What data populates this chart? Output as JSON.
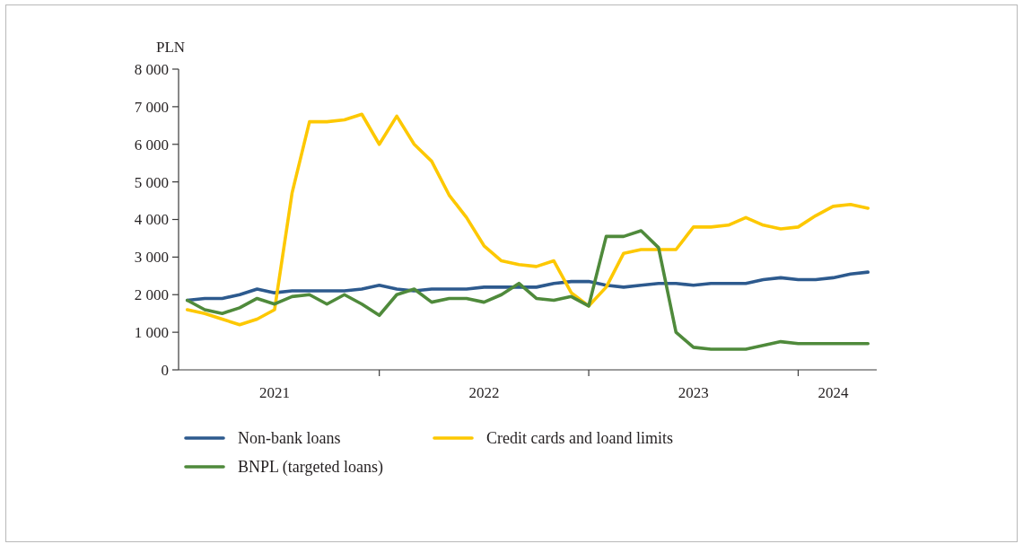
{
  "chart_data": {
    "type": "line",
    "ylabel": "PLN",
    "categories": [
      null,
      null,
      null,
      null,
      null,
      "2021",
      null,
      null,
      null,
      null,
      null,
      null,
      null,
      null,
      null,
      null,
      null,
      "2022",
      null,
      null,
      null,
      null,
      null,
      null,
      null,
      null,
      null,
      null,
      null,
      "2023",
      null,
      null,
      null,
      null,
      null,
      null,
      null,
      "2024",
      null,
      null
    ],
    "ylim": [
      0,
      8000
    ],
    "yticks": [
      0,
      {
        "value": 1000,
        "label": "1 000"
      },
      {
        "value": 2000,
        "label": "2 000"
      },
      {
        "value": 3000,
        "label": "3 000"
      },
      {
        "value": 4000,
        "label": "4 000"
      },
      {
        "value": 5000,
        "label": "5 000"
      },
      {
        "value": 6000,
        "label": "6 000"
      },
      {
        "value": 7000,
        "label": "7 000"
      },
      {
        "value": 8000,
        "label": "8 000"
      }
    ],
    "series": [
      {
        "name": "Non-bank loans",
        "color": "#2d5a8e",
        "values": [
          1850,
          1900,
          1900,
          2000,
          2150,
          2050,
          2100,
          2100,
          2100,
          2100,
          2150,
          2250,
          2150,
          2100,
          2150,
          2150,
          2150,
          2200,
          2200,
          2200,
          2200,
          2300,
          2350,
          2350,
          2250,
          2200,
          2250,
          2300,
          2300,
          2250,
          2300,
          2300,
          2300,
          2400,
          2450,
          2400,
          2400,
          2450,
          2550,
          2600
        ]
      },
      {
        "name": "Credit cards and loand limits",
        "color": "#fdc800",
        "values": [
          1600,
          1500,
          1350,
          1200,
          1350,
          1600,
          4700,
          6600,
          6600,
          6650,
          6800,
          6000,
          6750,
          6000,
          5550,
          4650,
          4050,
          3300,
          2900,
          2800,
          2750,
          2900,
          2050,
          1700,
          2200,
          3100,
          3200,
          3200,
          3200,
          3800,
          3800,
          3850,
          4050,
          3850,
          3750,
          3800,
          4100,
          4350,
          4400,
          4300
        ]
      },
      {
        "name": "BNPL (targeted loans)",
        "color": "#4f8a3b",
        "values": [
          1850,
          1600,
          1500,
          1650,
          1900,
          1750,
          1950,
          2000,
          1750,
          2000,
          1750,
          1450,
          2000,
          2150,
          1800,
          1900,
          1900,
          1800,
          2000,
          2300,
          1900,
          1850,
          1950,
          1700,
          3550,
          3550,
          3700,
          3250,
          1000,
          600,
          550,
          550,
          550,
          650,
          750,
          700,
          700,
          700,
          700,
          700
        ]
      }
    ],
    "legend": "bottom"
  }
}
